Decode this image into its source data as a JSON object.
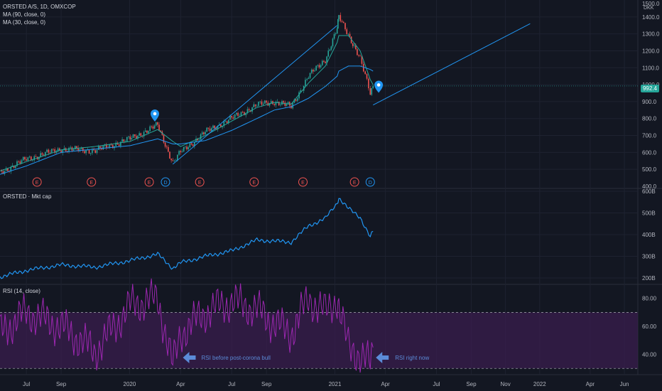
{
  "colors": {
    "background": "#131722",
    "grid": "#1e2230",
    "candle_up": "#26a69a",
    "candle_down": "#ef5350",
    "ma90": "#2196f3",
    "ma30": "#26a69a",
    "trendline": "#2196f3",
    "mktcap": "#2196f3",
    "rsi": "#9c27b0",
    "rsi_band": "#3a1e4e",
    "annotation": "#5b8bd8",
    "earnings": "#ef5350",
    "dividend": "#2196f3",
    "price_tag": "#26a69a"
  },
  "panels": {
    "price": {
      "legend": [
        "ORSTED A/S, 1D, OMXCOP",
        "MA (90, close, 0)",
        "MA (30, close, 0)"
      ],
      "currency": "DKK",
      "last_price": "992.4",
      "y_ticks": [
        "1500.0",
        "1400.0",
        "1300.0",
        "1200.0",
        "1100.0",
        "1000.0",
        "900.0",
        "800.0",
        "700.0",
        "600.0",
        "500.0",
        "400.0"
      ]
    },
    "mktcap": {
      "legend": "ORSTED · Mkt cap",
      "y_ticks": [
        "600B",
        "500B",
        "400B",
        "300B",
        "200B"
      ]
    },
    "rsi": {
      "legend": "RSI (14, close)",
      "y_ticks": [
        "80.00",
        "60.00",
        "40.00"
      ],
      "annotations": [
        "RSI before post-corona bull",
        "RSI right now"
      ]
    }
  },
  "x_axis": {
    "labels": [
      "Jul",
      "Sep",
      "2020",
      "Apr",
      "Jul",
      "Sep",
      "2021",
      "Apr",
      "Jul",
      "Sep",
      "Nov",
      "2022",
      "Apr",
      "Jun"
    ]
  },
  "events": {
    "earnings_label": "E",
    "dividend_label": "D"
  },
  "chart_data": [
    {
      "type": "line",
      "title": "ORSTED A/S, 1D, OMXCOP",
      "ylabel": "DKK",
      "ylim": [
        400,
        1500
      ],
      "x": [
        "2019-05-15",
        "2019-07-01",
        "2019-09-01",
        "2019-11-01",
        "2020-01-02",
        "2020-02-20",
        "2020-03-18",
        "2020-04-01",
        "2020-05-15",
        "2020-07-01",
        "2020-08-15",
        "2020-09-15",
        "2020-10-15",
        "2020-11-15",
        "2020-12-15",
        "2021-01-05",
        "2021-01-08",
        "2021-01-25",
        "2021-02-15",
        "2021-03-05",
        "2021-03-10"
      ],
      "series": [
        {
          "name": "Close",
          "values": [
            480,
            560,
            620,
            610,
            680,
            760,
            540,
            600,
            720,
            800,
            880,
            900,
            870,
            1050,
            1150,
            1330,
            1400,
            1300,
            1150,
            950,
            992
          ]
        },
        {
          "name": "MA (30, close, 0)",
          "values": [
            490,
            545,
            615,
            635,
            665,
            735,
            665,
            635,
            700,
            785,
            865,
            895,
            885,
            1010,
            1110,
            1250,
            1290,
            1290,
            1200,
            1030,
            1000
          ]
        },
        {
          "name": "MA (90, close, 0)",
          "values": [
            470,
            520,
            600,
            620,
            640,
            680,
            650,
            650,
            670,
            730,
            800,
            850,
            870,
            920,
            990,
            1050,
            1080,
            1110,
            1110,
            1090,
            1080
          ]
        }
      ],
      "trendlines": [
        {
          "from": {
            "x": "2020-03-18",
            "y": 530
          },
          "to": {
            "x": "2021-01-05",
            "y": 1350
          }
        },
        {
          "from": {
            "x": "2021-03-10",
            "y": 880
          },
          "to": {
            "x": "2021-12-15",
            "y": 1360
          }
        }
      ],
      "events": [
        {
          "type": "E",
          "x": "2019-07-20"
        },
        {
          "type": "E",
          "x": "2019-10-25"
        },
        {
          "type": "E",
          "x": "2020-02-05"
        },
        {
          "type": "D",
          "x": "2020-03-05"
        },
        {
          "type": "E",
          "x": "2020-05-05"
        },
        {
          "type": "E",
          "x": "2020-08-10"
        },
        {
          "type": "E",
          "x": "2020-11-05"
        },
        {
          "type": "E",
          "x": "2021-02-05"
        },
        {
          "type": "D",
          "x": "2021-03-05"
        }
      ]
    },
    {
      "type": "line",
      "title": "ORSTED · Mkt cap",
      "ylim": [
        200,
        600
      ],
      "x": [
        "2019-05-15",
        "2019-07-01",
        "2019-09-01",
        "2019-11-01",
        "2020-01-02",
        "2020-02-20",
        "2020-03-18",
        "2020-04-01",
        "2020-05-15",
        "2020-07-01",
        "2020-08-15",
        "2020-09-15",
        "2020-10-15",
        "2020-11-15",
        "2020-12-15",
        "2021-01-05",
        "2021-01-08",
        "2021-01-25",
        "2021-02-15",
        "2021-03-05",
        "2021-03-10"
      ],
      "series": [
        {
          "name": "Mkt cap (B DKK)",
          "values": [
            205,
            235,
            260,
            250,
            280,
            310,
            245,
            270,
            300,
            325,
            375,
            370,
            365,
            440,
            475,
            545,
            570,
            520,
            480,
            390,
            415
          ]
        }
      ]
    },
    {
      "type": "line",
      "title": "RSI (14, close)",
      "ylim": [
        20,
        90
      ],
      "x": [
        "2019-05-15",
        "2019-07-01",
        "2019-09-01",
        "2019-11-01",
        "2020-01-02",
        "2020-02-20",
        "2020-03-18",
        "2020-04-01",
        "2020-05-15",
        "2020-07-01",
        "2020-08-15",
        "2020-09-15",
        "2020-10-15",
        "2020-11-15",
        "2020-12-15",
        "2021-01-05",
        "2021-01-08",
        "2021-01-25",
        "2021-02-15",
        "2021-03-05",
        "2021-03-10"
      ],
      "series": [
        {
          "name": "RSI",
          "values": [
            55,
            70,
            60,
            42,
            75,
            80,
            32,
            55,
            70,
            78,
            72,
            62,
            55,
            80,
            70,
            80,
            74,
            45,
            40,
            33,
            45
          ]
        }
      ],
      "bands": [
        70,
        30
      ]
    }
  ]
}
